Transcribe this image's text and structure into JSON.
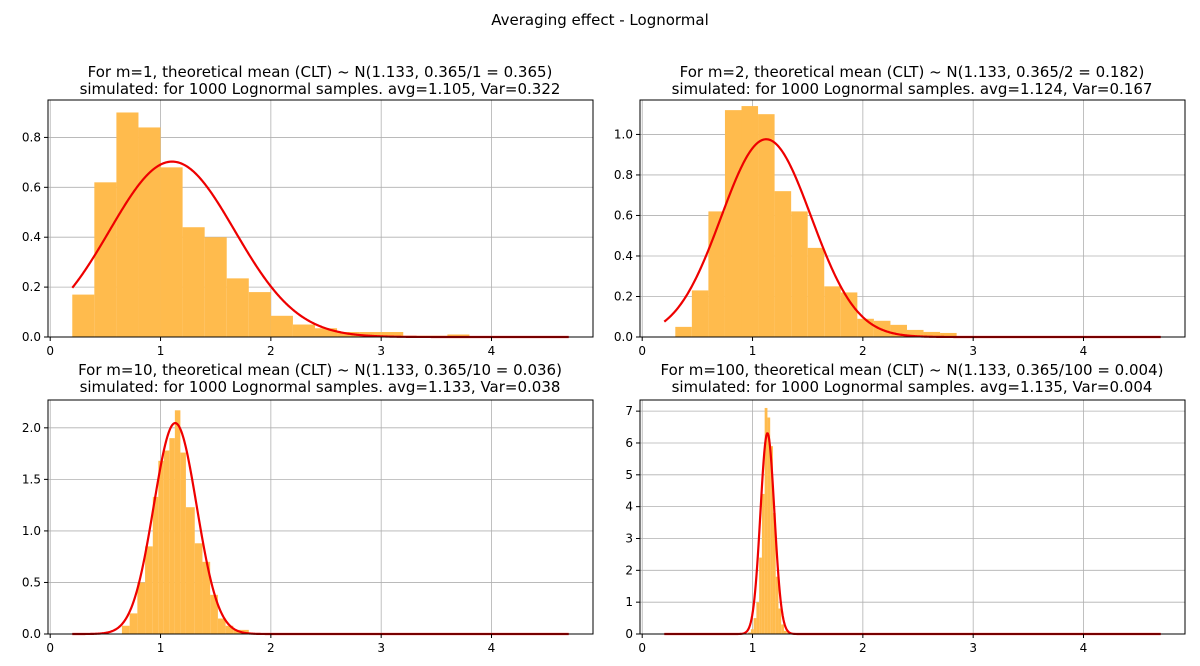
{
  "figure": {
    "suptitle": "Averaging effect - Lognormal",
    "colors": {
      "hist": "#ffbb4d",
      "curve": "#ee0000",
      "grid": "#b0b0b0",
      "axis": "#000000"
    }
  },
  "chart_data": [
    {
      "type": "bar",
      "title_line1": "For m=1, theoretical mean (CLT) ~ N(1.133, 0.365/1 = 0.365)",
      "title_line2": "simulated: for 1000 Lognormal samples. avg=1.105, Var=0.322",
      "xlim": [
        -0.02,
        4.92
      ],
      "ylim": [
        0,
        0.95
      ],
      "xticks": [
        0,
        1,
        2,
        3,
        4
      ],
      "yticks": [
        0.0,
        0.2,
        0.4,
        0.6,
        0.8
      ],
      "xtick_labels": [
        "0",
        "1",
        "2",
        "3",
        "4"
      ],
      "ytick_labels": [
        "0.0",
        "0.2",
        "0.4",
        "0.6",
        "0.8"
      ],
      "grid": true,
      "hist": {
        "bin_edges": [
          0.2,
          0.4,
          0.6,
          0.8,
          1.0,
          1.2,
          1.4,
          1.6,
          1.8,
          2.0,
          2.2,
          2.4,
          2.6,
          2.8,
          3.0,
          3.2,
          3.4,
          3.6,
          3.8
        ],
        "density": [
          0.17,
          0.62,
          0.9,
          0.84,
          0.68,
          0.44,
          0.4,
          0.235,
          0.18,
          0.085,
          0.05,
          0.035,
          0.02,
          0.02,
          0.02,
          0.005,
          0.005,
          0.01
        ]
      },
      "normal_curve": {
        "mean": 1.105,
        "var": 0.322,
        "x_range": [
          0.2,
          4.7
        ]
      }
    },
    {
      "type": "bar",
      "title_line1": "For m=2, theoretical mean (CLT) ~ N(1.133, 0.365/2 = 0.182)",
      "title_line2": "simulated: for 1000 Lognormal samples. avg=1.124, Var=0.167",
      "xlim": [
        -0.02,
        4.92
      ],
      "ylim": [
        0,
        1.17
      ],
      "xticks": [
        0,
        1,
        2,
        3,
        4
      ],
      "yticks": [
        0.0,
        0.2,
        0.4,
        0.6,
        0.8,
        1.0
      ],
      "xtick_labels": [
        "0",
        "1",
        "2",
        "3",
        "4"
      ],
      "ytick_labels": [
        "0.0",
        "0.2",
        "0.4",
        "0.6",
        "0.8",
        "1.0"
      ],
      "grid": true,
      "hist": {
        "bin_edges": [
          0.3,
          0.45,
          0.6,
          0.75,
          0.9,
          1.05,
          1.2,
          1.35,
          1.5,
          1.65,
          1.8,
          1.95,
          2.1,
          2.25,
          2.4,
          2.55,
          2.7,
          2.85,
          3.0
        ],
        "density": [
          0.05,
          0.23,
          0.62,
          1.12,
          1.14,
          1.1,
          0.72,
          0.62,
          0.44,
          0.25,
          0.22,
          0.09,
          0.08,
          0.06,
          0.035,
          0.025,
          0.02,
          0.005
        ]
      },
      "normal_curve": {
        "mean": 1.124,
        "var": 0.167,
        "x_range": [
          0.2,
          4.7
        ]
      }
    },
    {
      "type": "bar",
      "title_line1": "For m=10, theoretical mean (CLT) ~ N(1.133, 0.365/10 = 0.036)",
      "title_line2": "simulated: for 1000 Lognormal samples. avg=1.133, Var=0.038",
      "xlim": [
        -0.02,
        4.92
      ],
      "ylim": [
        0,
        2.27
      ],
      "xticks": [
        0,
        1,
        2,
        3,
        4
      ],
      "yticks": [
        0.0,
        0.5,
        1.0,
        1.5,
        2.0
      ],
      "xtick_labels": [
        "0",
        "1",
        "2",
        "3",
        "4"
      ],
      "ytick_labels": [
        "0.0",
        "0.5",
        "1.0",
        "1.5",
        "2.0"
      ],
      "grid": true,
      "hist": {
        "bin_edges": [
          0.65,
          0.72,
          0.79,
          0.86,
          0.93,
          0.98,
          1.03,
          1.08,
          1.13,
          1.18,
          1.23,
          1.31,
          1.38,
          1.45,
          1.52,
          1.59,
          1.66,
          1.73,
          1.8
        ],
        "density": [
          0.08,
          0.2,
          0.5,
          0.85,
          1.33,
          1.68,
          1.78,
          1.9,
          2.17,
          1.76,
          1.23,
          0.88,
          0.7,
          0.38,
          0.15,
          0.08,
          0.04,
          0.04
        ]
      },
      "normal_curve": {
        "mean": 1.133,
        "var": 0.038,
        "x_range": [
          0.2,
          4.7
        ]
      }
    },
    {
      "type": "bar",
      "title_line1": "For m=100, theoretical mean (CLT) ~ N(1.133, 0.365/100 = 0.004)",
      "title_line2": "simulated: for 1000 Lognormal samples. avg=1.135, Var=0.004",
      "xlim": [
        -0.02,
        4.92
      ],
      "ylim": [
        0,
        7.35
      ],
      "xticks": [
        0,
        1,
        2,
        3,
        4
      ],
      "yticks": [
        0,
        1,
        2,
        3,
        4,
        5,
        6,
        7
      ],
      "xtick_labels": [
        "0",
        "1",
        "2",
        "3",
        "4"
      ],
      "ytick_labels": [
        "0",
        "1",
        "2",
        "3",
        "4",
        "5",
        "6",
        "7"
      ],
      "grid": true,
      "hist": {
        "bin_edges": [
          0.96,
          0.985,
          1.01,
          1.035,
          1.06,
          1.085,
          1.11,
          1.135,
          1.16,
          1.185,
          1.21,
          1.235,
          1.26,
          1.285,
          1.31,
          1.335,
          1.36
        ],
        "density": [
          0.05,
          0.15,
          0.5,
          1.0,
          2.4,
          4.4,
          7.1,
          6.8,
          5.9,
          3.8,
          1.8,
          0.8,
          0.3,
          0.1,
          0.05,
          0.02
        ]
      },
      "normal_curve": {
        "mean": 1.135,
        "var": 0.004,
        "x_range": [
          0.2,
          4.7
        ]
      }
    }
  ]
}
